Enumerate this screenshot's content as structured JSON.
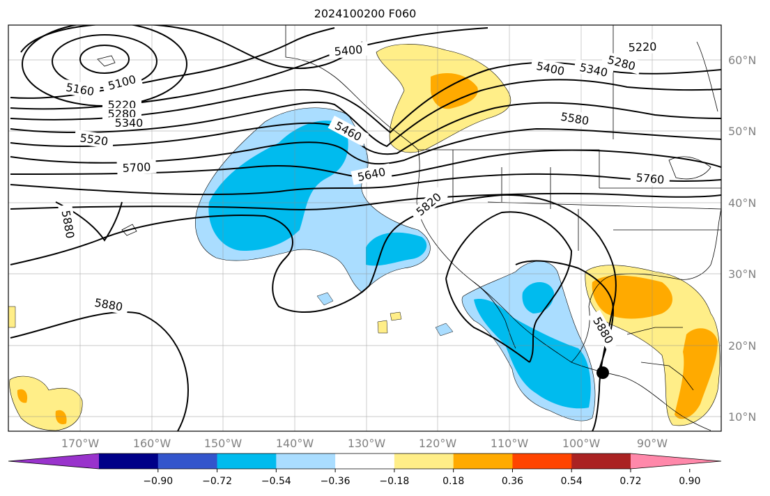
{
  "title": "2024100200 F060",
  "lon_labels": [
    "170°W",
    "160°W",
    "150°W",
    "140°W",
    "130°W",
    "120°W",
    "110°W",
    "100°W",
    "90°W"
  ],
  "lat_labels": [
    "60°N",
    "50°N",
    "40°N",
    "30°N",
    "20°N",
    "10°N"
  ],
  "colorbar": {
    "colors": [
      "#9933cc",
      "#000088",
      "#3355cc",
      "#00bbee",
      "#aaddff",
      "#ffffff",
      "#ffee88",
      "#ffaa00",
      "#ff4400",
      "#aa2222",
      "#ff88aa"
    ],
    "tick_labels": [
      "−0.90",
      "−0.72",
      "−0.54",
      "−0.36",
      "−0.18",
      "0.18",
      "0.36",
      "0.54",
      "0.72",
      "0.90"
    ]
  },
  "contour_labels": [
    {
      "text": "5400"
    },
    {
      "text": "5400"
    },
    {
      "text": "5340"
    },
    {
      "text": "5220"
    },
    {
      "text": "5280"
    },
    {
      "text": "5100"
    },
    {
      "text": "5160"
    },
    {
      "text": "5220"
    },
    {
      "text": "5280"
    },
    {
      "text": "5340"
    },
    {
      "text": "5520"
    },
    {
      "text": "5460"
    },
    {
      "text": "5580"
    },
    {
      "text": "5700"
    },
    {
      "text": "5640"
    },
    {
      "text": "5760"
    },
    {
      "text": "5820"
    },
    {
      "text": "5880"
    },
    {
      "text": "5880"
    },
    {
      "text": "5880"
    }
  ],
  "marker": {
    "label": "storm-center",
    "color": "#000000"
  }
}
